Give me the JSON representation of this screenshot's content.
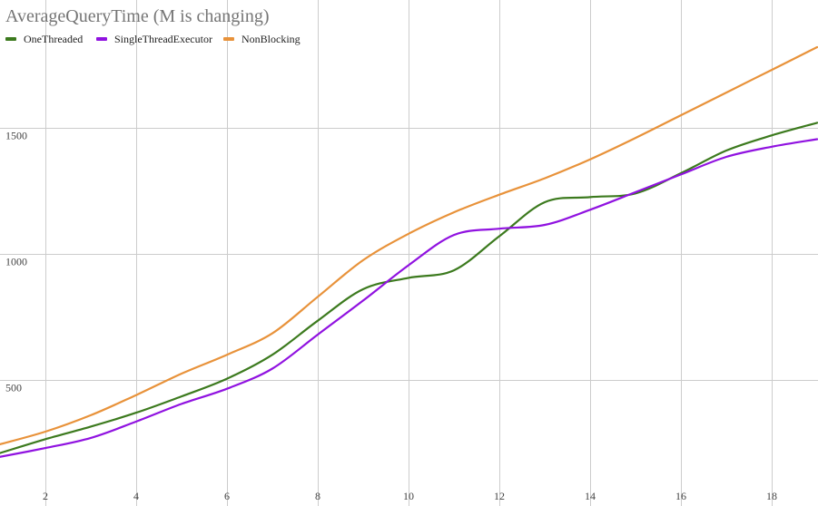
{
  "chart_data": {
    "type": "line",
    "title": "AverageQueryTime (M is changing)",
    "xlabel": "",
    "ylabel": "",
    "xlim": [
      1,
      19
    ],
    "ylim": [
      0,
      1950
    ],
    "x_ticks": [
      2,
      4,
      6,
      8,
      10,
      12,
      14,
      16,
      18
    ],
    "y_ticks": [
      500,
      1000,
      1500
    ],
    "grid": true,
    "legend_position": "top-left",
    "x": [
      1,
      2,
      3,
      4,
      5,
      6,
      7,
      8,
      9,
      10,
      11,
      12,
      13,
      14,
      15,
      16,
      17,
      18,
      19
    ],
    "series": [
      {
        "name": "OneThreaded",
        "color": "#3c7a1e",
        "values": [
          210,
          265,
          315,
          370,
          435,
          505,
          600,
          735,
          860,
          905,
          935,
          1070,
          1205,
          1225,
          1240,
          1320,
          1410,
          1470,
          1520
        ]
      },
      {
        "name": "SingleThreadExecutor",
        "color": "#9012e0",
        "values": [
          195,
          230,
          270,
          335,
          405,
          465,
          545,
          680,
          815,
          955,
          1075,
          1100,
          1115,
          1175,
          1245,
          1315,
          1385,
          1425,
          1455
        ]
      },
      {
        "name": "NonBlocking",
        "color": "#e8923a",
        "values": [
          245,
          295,
          360,
          440,
          525,
          600,
          685,
          830,
          975,
          1080,
          1165,
          1235,
          1300,
          1375,
          1460,
          1550,
          1640,
          1730,
          1820
        ]
      }
    ]
  }
}
